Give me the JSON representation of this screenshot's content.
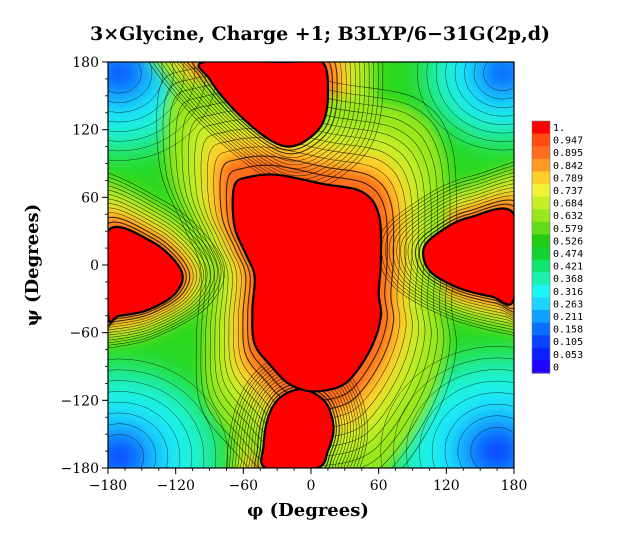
{
  "chart_data": {
    "type": "heatmap",
    "title": "3×Glycine, Charge +1; B3LYP/6−31G(2p,d)",
    "xlabel": "φ (Degrees)",
    "ylabel": "ψ (Degrees)",
    "xlim": [
      -180,
      180
    ],
    "ylim": [
      -180,
      180
    ],
    "x_ticks": [
      "−180",
      "−120",
      "−60",
      "0",
      "60",
      "120",
      "180"
    ],
    "y_ticks": [
      "180",
      "120",
      "60",
      "0",
      "−60",
      "−120",
      "−180"
    ],
    "x_tick_values": [
      -180,
      -120,
      -60,
      0,
      60,
      120,
      180
    ],
    "y_tick_values": [
      180,
      120,
      60,
      0,
      -60,
      -120,
      -180
    ],
    "colorbar": {
      "labels": [
        "1.",
        "0.947",
        "0.895",
        "0.842",
        "0.789",
        "0.737",
        "0.684",
        "0.632",
        "0.579",
        "0.526",
        "0.474",
        "0.421",
        "0.368",
        "0.316",
        "0.263",
        "0.211",
        "0.158",
        "0.105",
        "0.053",
        "0"
      ],
      "colors": [
        "#ff0000",
        "#ff4a12",
        "#ff6e1e",
        "#ff9a22",
        "#ffd02a",
        "#f2f234",
        "#c6ee26",
        "#98e81e",
        "#62dc18",
        "#22cc10",
        "#12d232",
        "#12e470",
        "#1af0b0",
        "#1cf6f2",
        "#1cd4ff",
        "#10a2ff",
        "#0a70ff",
        "#0844ff",
        "#0a20ff",
        "#2000ff"
      ]
    },
    "red_regions": [
      {
        "points": [
          [
            -95,
            180
          ],
          [
            -20,
            180
          ],
          [
            10,
            180
          ],
          [
            15,
            150
          ],
          [
            10,
            125
          ],
          [
            -5,
            110
          ],
          [
            -20,
            105
          ],
          [
            -35,
            110
          ],
          [
            -55,
            125
          ],
          [
            -75,
            145
          ],
          [
            -90,
            165
          ]
        ]
      },
      {
        "points": [
          [
            -40,
            -180
          ],
          [
            5,
            -180
          ],
          [
            15,
            -165
          ],
          [
            20,
            -145
          ],
          [
            15,
            -125
          ],
          [
            5,
            -115
          ],
          [
            -10,
            -110
          ],
          [
            -28,
            -118
          ],
          [
            -38,
            -135
          ],
          [
            -42,
            -160
          ]
        ]
      },
      {
        "points": [
          [
            -180,
            30
          ],
          [
            -140,
            20
          ],
          [
            -115,
            -5
          ],
          [
            -120,
            -25
          ],
          [
            -145,
            -40
          ],
          [
            -170,
            -45
          ],
          [
            -180,
            -45
          ]
        ]
      },
      {
        "points": [
          [
            180,
            45
          ],
          [
            140,
            42
          ],
          [
            115,
            30
          ],
          [
            100,
            15
          ],
          [
            105,
            -5
          ],
          [
            130,
            -20
          ],
          [
            160,
            -28
          ],
          [
            180,
            -30
          ]
        ]
      },
      {
        "points": [
          [
            -68,
            70
          ],
          [
            -55,
            78
          ],
          [
            -30,
            80
          ],
          [
            10,
            72
          ],
          [
            45,
            65
          ],
          [
            60,
            45
          ],
          [
            62,
            5
          ],
          [
            60,
            -25
          ],
          [
            62,
            -45
          ],
          [
            55,
            -70
          ],
          [
            40,
            -95
          ],
          [
            25,
            -108
          ],
          [
            0,
            -112
          ],
          [
            -20,
            -105
          ],
          [
            -35,
            -90
          ],
          [
            -50,
            -70
          ],
          [
            -52,
            -40
          ],
          [
            -50,
            -10
          ],
          [
            -58,
            10
          ],
          [
            -68,
            35
          ]
        ]
      }
    ],
    "cold_spots": [
      {
        "x": -170,
        "y": 170,
        "radius": 25
      },
      {
        "x": 170,
        "y": 170,
        "radius": 22
      },
      {
        "x": -170,
        "y": -170,
        "radius": 28
      },
      {
        "x": 165,
        "y": -165,
        "radius": 30
      }
    ]
  }
}
